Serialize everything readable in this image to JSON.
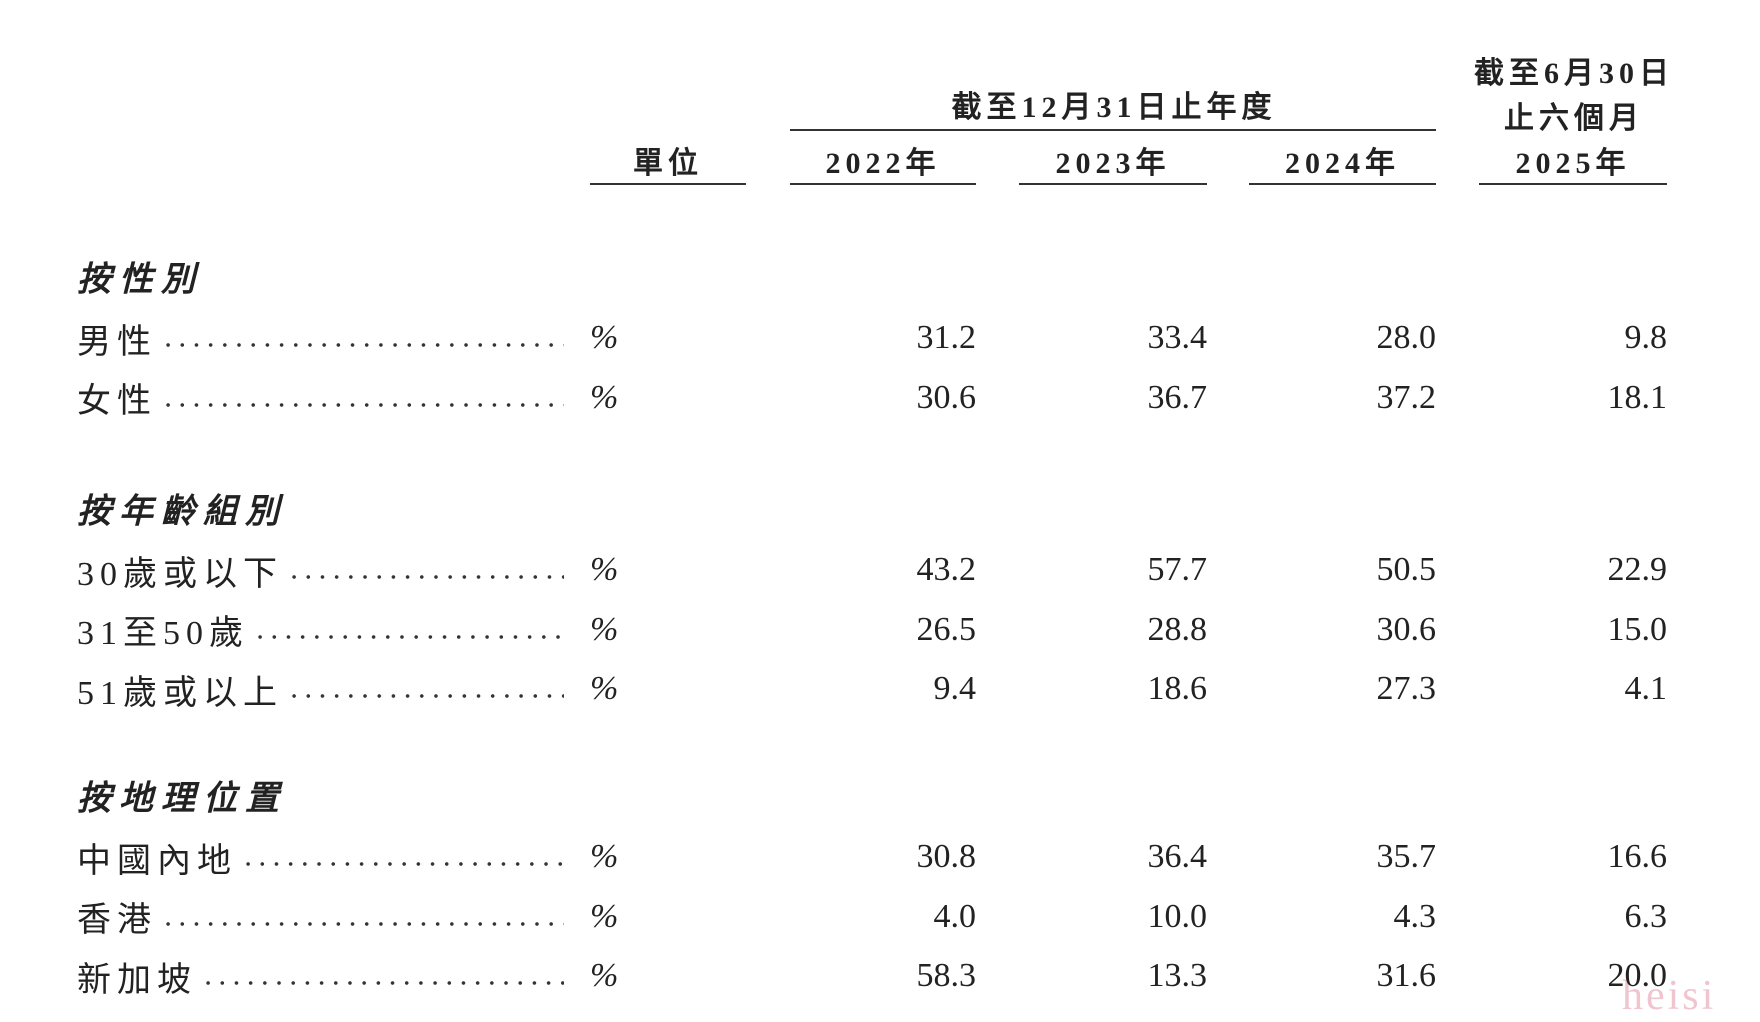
{
  "header": {
    "period_group": "截至12月31日止年度",
    "six_month_group": [
      "截至6月30日",
      "止六個月"
    ],
    "columns": [
      "單位",
      "2022年",
      "2023年",
      "2024年",
      "2025年"
    ]
  },
  "sections": [
    {
      "title": "按性別",
      "rows": [
        {
          "label": "男性",
          "unit": "%",
          "values": [
            "31.2",
            "33.4",
            "28.0",
            "9.8"
          ]
        },
        {
          "label": "女性",
          "unit": "%",
          "values": [
            "30.6",
            "36.7",
            "37.2",
            "18.1"
          ]
        }
      ]
    },
    {
      "title": "按年齡組別",
      "rows": [
        {
          "label": "30歲或以下",
          "unit": "%",
          "values": [
            "43.2",
            "57.7",
            "50.5",
            "22.9"
          ]
        },
        {
          "label": "31至50歲",
          "unit": "%",
          "values": [
            "26.5",
            "28.8",
            "30.6",
            "15.0"
          ]
        },
        {
          "label": "51歲或以上",
          "unit": "%",
          "values": [
            "9.4",
            "18.6",
            "27.3",
            "4.1"
          ]
        }
      ]
    },
    {
      "title": "按地理位置",
      "rows": [
        {
          "label": "中國內地",
          "unit": "%",
          "values": [
            "30.8",
            "36.4",
            "35.7",
            "16.6"
          ]
        },
        {
          "label": "香港",
          "unit": "%",
          "values": [
            "4.0",
            "10.0",
            "4.3",
            "6.3"
          ]
        },
        {
          "label": "新加坡",
          "unit": "%",
          "values": [
            "58.3",
            "13.3",
            "31.6",
            "20.0"
          ]
        }
      ]
    }
  ],
  "watermark": "heisi"
}
